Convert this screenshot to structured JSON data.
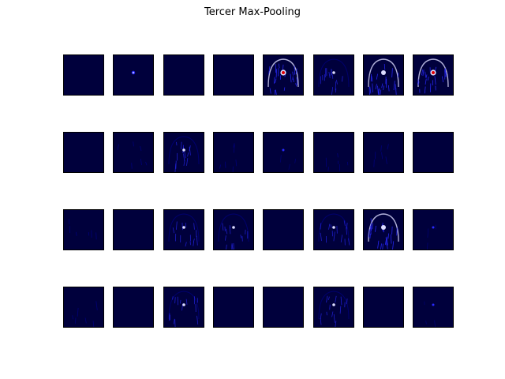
{
  "figure": {
    "title": "Tercer Max-Pooling",
    "rows": 4,
    "cols": 8
  },
  "colors": {
    "background": "#00003c",
    "low": "#0000a0",
    "mid": "#2a2aff",
    "high": "#dcdcff",
    "hot": "#e00000"
  },
  "tiles": [
    {
      "activity": "none"
    },
    {
      "activity": "point"
    },
    {
      "activity": "none"
    },
    {
      "activity": "none"
    },
    {
      "activity": "strong-red"
    },
    {
      "activity": "medium"
    },
    {
      "activity": "strong"
    },
    {
      "activity": "strong-red"
    },
    {
      "activity": "none"
    },
    {
      "activity": "faint"
    },
    {
      "activity": "medium"
    },
    {
      "activity": "faint"
    },
    {
      "activity": "faint-point"
    },
    {
      "activity": "faint"
    },
    {
      "activity": "faint"
    },
    {
      "activity": "none"
    },
    {
      "activity": "faint"
    },
    {
      "activity": "none"
    },
    {
      "activity": "medium"
    },
    {
      "activity": "medium"
    },
    {
      "activity": "none"
    },
    {
      "activity": "medium"
    },
    {
      "activity": "strong"
    },
    {
      "activity": "faint-point"
    },
    {
      "activity": "faint"
    },
    {
      "activity": "none"
    },
    {
      "activity": "medium"
    },
    {
      "activity": "none"
    },
    {
      "activity": "none"
    },
    {
      "activity": "medium"
    },
    {
      "activity": "none"
    },
    {
      "activity": "faint-point"
    }
  ]
}
